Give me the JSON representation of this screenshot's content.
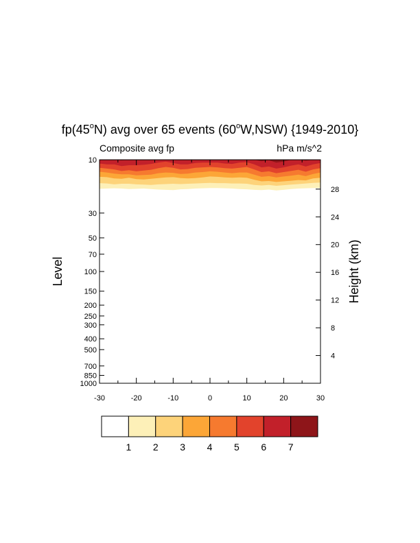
{
  "chart_data": {
    "type": "heatmap",
    "title_parts": [
      "fp(45",
      "o",
      "N) avg over 65 events (60",
      "o",
      "W,NSW) {1949-2010}"
    ],
    "left_subtitle": "Composite avg fp",
    "right_subtitle": "hPa m/s^2",
    "ylabel": "Level",
    "y2label": "Height (km)",
    "xlim": [
      -30,
      30
    ],
    "x_ticks": [
      "-30",
      "-20",
      "-10",
      "0",
      "10",
      "20",
      "30"
    ],
    "y_ticks_hPa": [
      "10",
      "30",
      "50",
      "70",
      "100",
      "150",
      "200",
      "250",
      "300",
      "400",
      "500",
      "700",
      "850",
      "1000"
    ],
    "y_scale": "log",
    "ylim_hPa": [
      1000,
      10
    ],
    "height_ticks_km": [
      "4",
      "8",
      "12",
      "16",
      "20",
      "24",
      "28"
    ],
    "contour_levels": [
      "1",
      "2",
      "3",
      "4",
      "5",
      "6",
      "7"
    ],
    "colors": [
      "#ffffff",
      "#fdf0b8",
      "#fdd37a",
      "#fca637",
      "#f67a2f",
      "#e2432c",
      "#c2202a",
      "#8e1519"
    ],
    "x_samples": [
      -30,
      -28,
      -26,
      -24,
      -22,
      -20,
      -18,
      -16,
      -14,
      -12,
      -10,
      -8,
      -6,
      -4,
      -2,
      0,
      2,
      4,
      6,
      8,
      10,
      12,
      14,
      16,
      18,
      20,
      22,
      24,
      26,
      28,
      30
    ],
    "contour_boundary_hPa": [
      [
        18.2,
        18.1,
        18.0,
        18.1,
        18.3,
        18.2,
        18.1,
        18.3,
        18.5,
        18.6,
        18.7,
        18.4,
        18.3,
        18.1,
        18.0,
        17.9,
        17.9,
        18.0,
        18.1,
        18.3,
        18.4,
        18.6,
        18.7,
        18.5,
        18.8,
        18.6,
        18.3,
        18.1,
        18.0,
        17.9,
        17.9
      ],
      [
        16.2,
        16.3,
        16.6,
        16.4,
        16.4,
        16.6,
        16.7,
        16.8,
        16.6,
        16.5,
        16.4,
        16.5,
        16.4,
        16.3,
        16.2,
        16.1,
        16.2,
        16.2,
        16.3,
        16.3,
        16.4,
        16.8,
        17.0,
        16.8,
        17.1,
        16.9,
        16.7,
        16.5,
        16.3,
        16.1,
        16.0
      ],
      [
        14.2,
        14.3,
        14.7,
        14.8,
        14.5,
        14.9,
        15.0,
        14.8,
        14.6,
        14.4,
        14.3,
        14.6,
        14.7,
        14.6,
        14.4,
        14.1,
        14.2,
        14.4,
        14.5,
        14.4,
        14.5,
        15.1,
        15.6,
        15.5,
        15.8,
        15.6,
        15.4,
        15.2,
        15.3,
        14.7,
        14.5
      ],
      [
        12.8,
        13.0,
        13.3,
        13.5,
        13.5,
        13.8,
        13.7,
        13.6,
        13.2,
        13.0,
        13.1,
        13.4,
        13.3,
        13.0,
        12.9,
        12.7,
        12.8,
        13.0,
        13.2,
        13.0,
        13.0,
        13.6,
        14.2,
        14.0,
        14.4,
        14.1,
        13.9,
        13.6,
        14.0,
        13.4,
        13.0
      ],
      [
        11.8,
        12.0,
        12.2,
        12.6,
        12.4,
        12.7,
        12.5,
        12.3,
        11.9,
        11.6,
        11.8,
        12.2,
        12.1,
        11.8,
        11.7,
        11.6,
        11.7,
        11.9,
        12.0,
        11.8,
        11.6,
        12.2,
        12.9,
        12.7,
        13.2,
        12.9,
        12.6,
        12.3,
        12.8,
        12.2,
        11.9
      ],
      [
        10.8,
        11.0,
        11.0,
        11.4,
        11.2,
        11.2,
        11.1,
        10.9,
        10.6,
        10.4,
        10.7,
        11.0,
        11.0,
        10.7,
        10.6,
        10.6,
        10.6,
        10.8,
        10.9,
        10.6,
        10.5,
        11.0,
        11.7,
        11.5,
        12.0,
        11.7,
        11.3,
        11.0,
        11.5,
        11.0,
        10.7
      ],
      [
        10.0,
        10.0,
        10.0,
        10.1,
        10.0,
        10.0,
        10.0,
        10.0,
        10.0,
        10.0,
        10.0,
        10.0,
        10.0,
        10.0,
        10.0,
        10.0,
        10.0,
        10.0,
        10.0,
        10.0,
        10.0,
        10.0,
        10.3,
        10.1,
        10.6,
        10.4,
        10.0,
        10.0,
        10.2,
        10.0,
        10.0
      ]
    ]
  }
}
